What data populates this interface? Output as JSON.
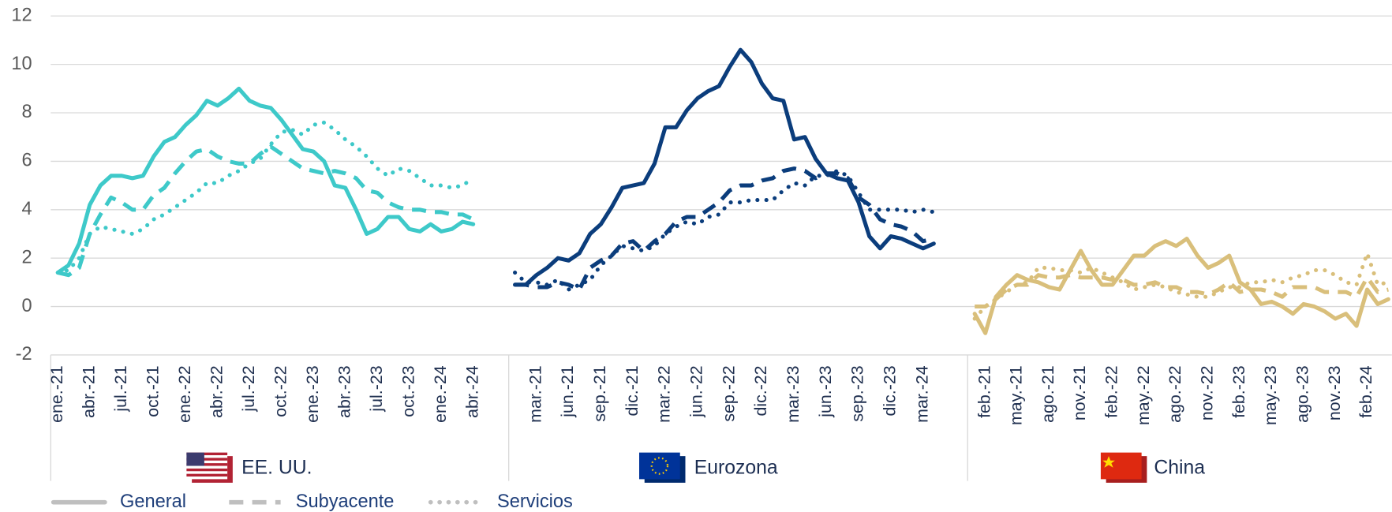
{
  "chart_data": {
    "type": "line",
    "ylim": [
      -2,
      12
    ],
    "yticks": [
      -2,
      0,
      2,
      4,
      6,
      8,
      10,
      12
    ],
    "grid": true,
    "legend": {
      "color": "#bfbfbf",
      "entries": [
        {
          "name": "General",
          "dash": "solid"
        },
        {
          "name": "Subyacente",
          "dash": "dash"
        },
        {
          "name": "Servicios",
          "dash": "dot"
        }
      ]
    },
    "panels": [
      {
        "label": "EE. UU.",
        "categories": [
          "ene.-21",
          null,
          null,
          "abr.-21",
          null,
          null,
          "jul.-21",
          null,
          null,
          "oct.-21",
          null,
          null,
          "ene.-22",
          null,
          null,
          "abr.-22",
          null,
          null,
          "jul.-22",
          null,
          null,
          "oct.-22",
          null,
          null,
          "ene.-23",
          null,
          null,
          "abr.-23",
          null,
          null,
          "jul.-23",
          null,
          null,
          "oct.-23",
          null,
          null,
          "ene.-24",
          null,
          null,
          "abr.-24"
        ],
        "series": [
          {
            "color": "#3ec9c9",
            "values": [
              1.4,
              1.7,
              2.6,
              4.2,
              5.0,
              5.4,
              5.4,
              5.3,
              5.4,
              6.2,
              6.8,
              7.0,
              7.5,
              7.9,
              8.5,
              8.3,
              8.6,
              9.0,
              8.5,
              8.3,
              8.2,
              7.7,
              7.1,
              6.5,
              6.4,
              6.0,
              5.0,
              4.9,
              4.0,
              3.0,
              3.2,
              3.7,
              3.7,
              3.2,
              3.1,
              3.4,
              3.1,
              3.2,
              3.5,
              3.4
            ]
          },
          {
            "color": "#3ec9c9",
            "values": [
              1.4,
              1.3,
              1.6,
              3.0,
              3.8,
              4.5,
              4.3,
              4.0,
              4.0,
              4.6,
              4.9,
              5.5,
              6.0,
              6.4,
              6.5,
              6.2,
              6.0,
              5.9,
              5.9,
              6.3,
              6.6,
              6.3,
              6.0,
              5.7,
              5.6,
              5.5,
              5.6,
              5.5,
              5.3,
              4.8,
              4.7,
              4.3,
              4.1,
              4.0,
              4.0,
              3.9,
              3.9,
              3.8,
              3.8,
              3.6
            ]
          },
          {
            "color": "#3ec9c9",
            "values": [
              1.4,
              1.5,
              2.0,
              3.0,
              3.3,
              3.2,
              3.1,
              3.0,
              3.2,
              3.6,
              3.8,
              4.1,
              4.4,
              4.7,
              5.1,
              5.1,
              5.4,
              5.6,
              5.9,
              6.1,
              6.7,
              7.2,
              7.3,
              7.1,
              7.5,
              7.6,
              7.3,
              6.9,
              6.6,
              6.2,
              5.7,
              5.4,
              5.7,
              5.6,
              5.3,
              5.0,
              5.0,
              4.9,
              5.0,
              5.3
            ]
          }
        ]
      },
      {
        "label": "Eurozona",
        "categories": [
          null,
          null,
          "mar.-21",
          null,
          null,
          "jun.-21",
          null,
          null,
          "sep.-21",
          null,
          null,
          "dic.-21",
          null,
          null,
          "mar.-22",
          null,
          null,
          "jun.-22",
          null,
          null,
          "sep.-22",
          null,
          null,
          "dic.-22",
          null,
          null,
          "mar.-23",
          null,
          null,
          "jun.-23",
          null,
          null,
          "sep.-23",
          null,
          null,
          "dic.-23",
          null,
          null,
          "mar.-24",
          null
        ],
        "series": [
          {
            "color": "#0b3d7c",
            "values": [
              0.9,
              0.9,
              1.3,
              1.6,
              2.0,
              1.9,
              2.2,
              3.0,
              3.4,
              4.1,
              4.9,
              5.0,
              5.1,
              5.9,
              7.4,
              7.4,
              8.1,
              8.6,
              8.9,
              9.1,
              9.9,
              10.6,
              10.1,
              9.2,
              8.6,
              8.5,
              6.9,
              7.0,
              6.1,
              5.5,
              5.3,
              5.2,
              4.3,
              2.9,
              2.4,
              2.9,
              2.8,
              2.6,
              2.4,
              2.6
            ]
          },
          {
            "color": "#0b3d7c",
            "values": [
              0.9,
              0.9,
              0.8,
              0.8,
              1.0,
              0.9,
              0.7,
              1.6,
              1.9,
              2.1,
              2.6,
              2.7,
              2.3,
              2.7,
              3.0,
              3.5,
              3.7,
              3.7,
              4.0,
              4.3,
              4.8,
              5.0,
              5.0,
              5.2,
              5.3,
              5.6,
              5.7,
              5.6,
              5.3,
              5.5,
              5.5,
              5.3,
              4.5,
              4.2,
              3.6,
              3.4,
              3.3,
              3.1,
              2.7,
              2.8
            ]
          },
          {
            "color": "#0b3d7c",
            "values": [
              1.4,
              1.0,
              1.0,
              0.9,
              1.1,
              0.7,
              0.9,
              1.1,
              1.7,
              2.1,
              2.5,
              2.4,
              2.3,
              2.5,
              3.0,
              3.3,
              3.5,
              3.4,
              3.7,
              3.8,
              4.3,
              4.3,
              4.4,
              4.4,
              4.4,
              4.8,
              5.1,
              5.0,
              5.4,
              5.4,
              5.6,
              5.4,
              4.7,
              4.0,
              4.0,
              4.0,
              4.0,
              3.9,
              4.0,
              3.9
            ]
          }
        ]
      },
      {
        "label": "China",
        "categories": [
          null,
          "feb.-21",
          null,
          null,
          "may.-21",
          null,
          null,
          "ago.-21",
          null,
          null,
          "nov.-21",
          null,
          null,
          "feb.-22",
          null,
          null,
          "may.-22",
          null,
          null,
          "ago.-22",
          null,
          null,
          "nov.-22",
          null,
          null,
          "feb.-23",
          null,
          null,
          "may.-23",
          null,
          null,
          "ago.-23",
          null,
          null,
          "nov.-23",
          null,
          null,
          "feb.-24",
          null,
          null
        ],
        "series": [
          {
            "color": "#d9bf7b",
            "values": [
              -0.3,
              -1.1,
              0.4,
              0.9,
              1.3,
              1.1,
              1.0,
              0.8,
              0.7,
              1.5,
              2.3,
              1.5,
              0.9,
              0.9,
              1.5,
              2.1,
              2.1,
              2.5,
              2.7,
              2.5,
              2.8,
              2.1,
              1.6,
              1.8,
              2.1,
              1.0,
              0.7,
              0.1,
              0.2,
              0.0,
              -0.3,
              0.1,
              0.0,
              -0.2,
              -0.5,
              -0.3,
              -0.8,
              0.7,
              0.1,
              0.3
            ]
          },
          {
            "color": "#d9bf7b",
            "values": [
              0.0,
              0.0,
              0.3,
              0.7,
              0.9,
              0.9,
              1.3,
              1.2,
              1.2,
              1.3,
              1.2,
              1.2,
              1.2,
              1.1,
              1.1,
              0.9,
              0.9,
              1.0,
              0.8,
              0.8,
              0.6,
              0.6,
              0.5,
              0.7,
              1.0,
              0.6,
              0.7,
              0.7,
              0.6,
              0.4,
              0.8,
              0.8,
              0.8,
              0.6,
              0.6,
              0.6,
              0.4,
              1.2,
              0.6,
              0.7
            ]
          },
          {
            "color": "#d9bf7b",
            "values": [
              -0.5,
              0.0,
              0.3,
              0.6,
              0.9,
              1.0,
              1.6,
              1.6,
              1.5,
              1.5,
              1.4,
              1.6,
              1.4,
              1.2,
              1.0,
              0.7,
              0.8,
              0.9,
              0.8,
              0.6,
              0.5,
              0.4,
              0.4,
              0.6,
              0.8,
              0.8,
              1.0,
              1.0,
              1.1,
              1.0,
              1.2,
              1.3,
              1.5,
              1.5,
              1.3,
              1.0,
              0.9,
              2.2,
              0.9,
              1.0
            ]
          }
        ]
      }
    ]
  }
}
